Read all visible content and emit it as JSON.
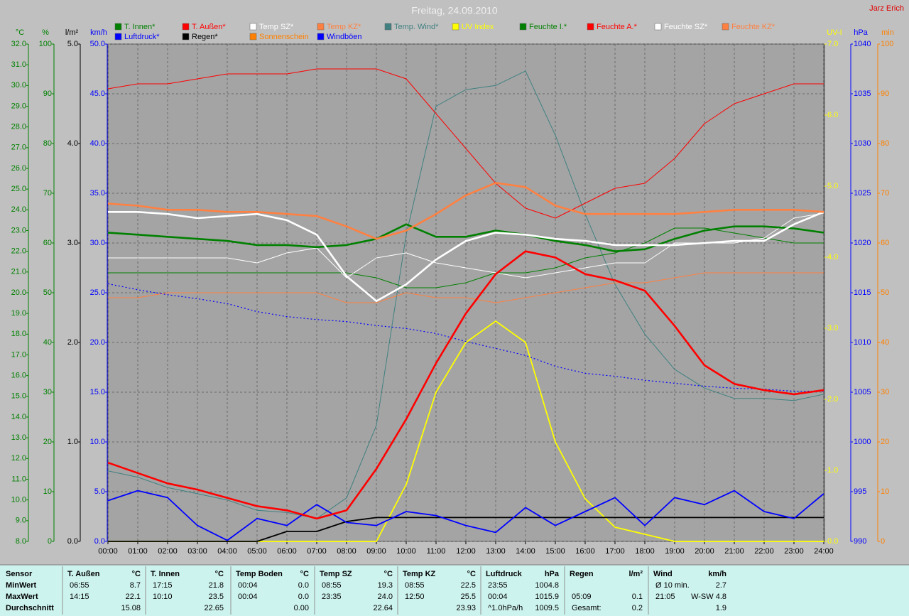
{
  "chart_data": {
    "type": "line",
    "title": "Freitag, 24.09.2010",
    "author": "Jarz Erich",
    "x": [
      0,
      1,
      2,
      3,
      4,
      5,
      6,
      7,
      8,
      9,
      10,
      11,
      12,
      13,
      14,
      15,
      16,
      17,
      18,
      19,
      20,
      21,
      22,
      23,
      24
    ],
    "xlim": [
      0,
      24
    ],
    "xticks": [
      {
        "value": 0,
        "label": "00:00"
      },
      {
        "value": 1,
        "label": "01:00"
      },
      {
        "value": 2,
        "label": "02:00"
      },
      {
        "value": 3,
        "label": "03:00"
      },
      {
        "value": 4,
        "label": "04:00"
      },
      {
        "value": 5,
        "label": "05:00"
      },
      {
        "value": 6,
        "label": "06:00"
      },
      {
        "value": 7,
        "label": "07:00"
      },
      {
        "value": 8,
        "label": "08:00"
      },
      {
        "value": 9,
        "label": "09:00"
      },
      {
        "value": 10,
        "label": "10:00"
      },
      {
        "value": 11,
        "label": "11:00"
      },
      {
        "value": 12,
        "label": "12:00"
      },
      {
        "value": 13,
        "label": "13:00"
      },
      {
        "value": 14,
        "label": "14:00"
      },
      {
        "value": 15,
        "label": "15:00"
      },
      {
        "value": 16,
        "label": "16:00"
      },
      {
        "value": 17,
        "label": "17:00"
      },
      {
        "value": 18,
        "label": "18:00"
      },
      {
        "value": 19,
        "label": "19:00"
      },
      {
        "value": 20,
        "label": "20:00"
      },
      {
        "value": 21,
        "label": "21:00"
      },
      {
        "value": 22,
        "label": "22:00"
      },
      {
        "value": 23,
        "label": "23:00"
      },
      {
        "value": 24,
        "label": "24:00"
      }
    ],
    "grid": true,
    "axes": [
      {
        "label": "°C",
        "color": "#008000",
        "side": "left",
        "ylim": [
          8,
          32
        ],
        "yticks": [
          {
            "value": 8,
            "label": "8.0"
          },
          {
            "value": 9,
            "label": "9.0"
          },
          {
            "value": 10,
            "label": "10.0"
          },
          {
            "value": 11,
            "label": "11.0"
          },
          {
            "value": 12,
            "label": "12.0"
          },
          {
            "value": 13,
            "label": "13.0"
          },
          {
            "value": 14,
            "label": "14.0"
          },
          {
            "value": 15,
            "label": "15.0"
          },
          {
            "value": 16,
            "label": "16.0"
          },
          {
            "value": 17,
            "label": "17.0"
          },
          {
            "value": 18,
            "label": "18.0"
          },
          {
            "value": 19,
            "label": "19.0"
          },
          {
            "value": 20,
            "label": "20.0"
          },
          {
            "value": 21,
            "label": "21.0"
          },
          {
            "value": 22,
            "label": "22.0"
          },
          {
            "value": 23,
            "label": "23.0"
          },
          {
            "value": 24,
            "label": "24.0"
          },
          {
            "value": 25,
            "label": "25.0"
          },
          {
            "value": 26,
            "label": "26.0"
          },
          {
            "value": 27,
            "label": "27.0"
          },
          {
            "value": 28,
            "label": "28.0"
          },
          {
            "value": 29,
            "label": "29.0"
          },
          {
            "value": 30,
            "label": "30.0"
          },
          {
            "value": 31,
            "label": "31.0"
          },
          {
            "value": 32,
            "label": "32.0"
          }
        ]
      },
      {
        "label": "%",
        "color": "#008000",
        "side": "left",
        "ylim": [
          0,
          100
        ],
        "yticks": [
          0,
          10,
          20,
          30,
          40,
          50,
          60,
          70,
          80,
          90,
          100
        ],
        "grid": true
      },
      {
        "label": "l/m²",
        "color": "#000000",
        "side": "left",
        "ylim": [
          0,
          5
        ],
        "yticks": [
          {
            "value": 0,
            "label": "0.0"
          },
          {
            "value": 1,
            "label": "1.0"
          },
          {
            "value": 2,
            "label": "2.0"
          },
          {
            "value": 3,
            "label": "3.0"
          },
          {
            "value": 4,
            "label": "4.0"
          },
          {
            "value": 5,
            "label": "5.0"
          }
        ]
      },
      {
        "label": "km/h",
        "color": "#0000ff",
        "side": "left",
        "ylim": [
          0,
          50
        ],
        "yticks": [
          {
            "value": 0,
            "label": "0.0"
          },
          {
            "value": 5,
            "label": "5.0"
          },
          {
            "value": 10,
            "label": "10.0"
          },
          {
            "value": 15,
            "label": "15.0"
          },
          {
            "value": 20,
            "label": "20.0"
          },
          {
            "value": 25,
            "label": "25.0"
          },
          {
            "value": 30,
            "label": "30.0"
          },
          {
            "value": 35,
            "label": "35.0"
          },
          {
            "value": 40,
            "label": "40.0"
          },
          {
            "value": 45,
            "label": "45.0"
          },
          {
            "value": 50,
            "label": "50.0"
          }
        ]
      },
      {
        "label": "UV-I",
        "color": "#ffff00",
        "side": "right",
        "ylim": [
          0,
          7
        ],
        "yticks": [
          {
            "value": 0,
            "label": "0.0"
          },
          {
            "value": 1,
            "label": "1.0"
          },
          {
            "value": 2,
            "label": "2.0"
          },
          {
            "value": 3,
            "label": "3.0"
          },
          {
            "value": 4,
            "label": "4.0"
          },
          {
            "value": 5,
            "label": "5.0"
          },
          {
            "value": 6,
            "label": "6.0"
          },
          {
            "value": 7,
            "label": "7.0"
          }
        ]
      },
      {
        "label": "hPa",
        "color": "#0000ff",
        "side": "right",
        "ylim": [
          990,
          1040
        ],
        "yticks": [
          990,
          995,
          1000,
          1005,
          1010,
          1015,
          1020,
          1025,
          1030,
          1035,
          1040
        ]
      },
      {
        "label": "min",
        "color": "#ff8000",
        "side": "right",
        "ylim": [
          0,
          100
        ],
        "yticks": [
          0,
          10,
          20,
          30,
          40,
          50,
          60,
          70,
          80,
          90,
          100
        ]
      }
    ],
    "series": [
      {
        "name": "T. Innen*",
        "color": "#008000",
        "axis": 0,
        "line": "thick",
        "values": [
          22.9,
          22.8,
          22.7,
          22.6,
          22.5,
          22.3,
          22.3,
          22.2,
          22.3,
          22.6,
          23.3,
          22.7,
          22.7,
          23.0,
          22.8,
          22.5,
          22.3,
          22.0,
          22.1,
          22.6,
          23.0,
          23.2,
          23.2,
          23.1,
          22.9
        ]
      },
      {
        "name": "T. Außen*",
        "color": "#ff0000",
        "axis": 0,
        "line": "thick",
        "values": [
          11.8,
          11.3,
          10.8,
          10.5,
          10.1,
          9.7,
          9.5,
          9.1,
          9.5,
          11.5,
          13.9,
          16.6,
          19.0,
          20.9,
          22.0,
          21.7,
          20.9,
          20.6,
          20.1,
          18.4,
          16.5,
          15.6,
          15.3,
          15.1,
          15.3
        ]
      },
      {
        "name": "Temp SZ*",
        "color": "#ffffff",
        "axis": 0,
        "line": "thick",
        "values": [
          23.9,
          23.9,
          23.8,
          23.6,
          23.7,
          23.8,
          23.5,
          22.8,
          20.8,
          19.6,
          20.4,
          21.6,
          22.5,
          22.9,
          22.8,
          22.6,
          22.5,
          22.3,
          22.3,
          22.3,
          22.4,
          22.5,
          22.5,
          23.3,
          23.9
        ]
      },
      {
        "name": "Temp KZ*",
        "color": "#ff8040",
        "axis": 0,
        "line": "thick",
        "values": [
          24.3,
          24.2,
          24.0,
          24.0,
          23.9,
          23.9,
          23.8,
          23.7,
          23.2,
          22.6,
          23.0,
          23.8,
          24.7,
          25.3,
          25.1,
          24.2,
          23.8,
          23.8,
          23.8,
          23.8,
          23.9,
          24.0,
          24.0,
          24.0,
          23.9
        ]
      },
      {
        "name": "Temp. Wind*",
        "color": "#408080",
        "axis": 0,
        "line": "thin",
        "values": [
          11.4,
          11.1,
          10.6,
          10.3,
          10.0,
          9.5,
          9.4,
          9.1,
          10.1,
          13.6,
          22.8,
          29.0,
          29.8,
          30.0,
          30.7,
          27.6,
          23.8,
          20.4,
          18.0,
          16.3,
          15.4,
          14.9,
          14.9,
          14.8,
          15.1
        ]
      },
      {
        "name": "UV Index",
        "color": "#ffff00",
        "axis": 4,
        "line": "medium",
        "values": [
          0,
          0,
          0,
          0,
          0,
          0,
          0,
          0,
          0,
          0,
          0.8,
          2.1,
          2.8,
          3.1,
          2.8,
          1.4,
          0.6,
          0.2,
          0.1,
          0,
          0,
          0,
          0,
          0,
          0
        ]
      },
      {
        "name": "Feuchte I.*",
        "color": "#008000",
        "axis": 1,
        "line": "thin",
        "values": [
          54,
          54,
          54,
          54,
          54,
          54,
          54,
          54,
          54,
          53,
          51,
          51,
          52,
          54,
          54,
          55,
          57,
          58,
          60,
          63,
          63,
          62,
          61,
          60,
          60
        ]
      },
      {
        "name": "Feuchte A.*",
        "color": "#ff0000",
        "axis": 1,
        "line": "thin",
        "values": [
          91,
          92,
          92,
          93,
          94,
          94,
          94,
          95,
          95,
          95,
          93,
          86,
          79,
          72,
          67,
          65,
          68,
          71,
          72,
          77,
          84,
          88,
          90,
          92,
          92
        ]
      },
      {
        "name": "Feuchte SZ*",
        "color": "#ffffff",
        "axis": 1,
        "line": "thin",
        "values": [
          57,
          57,
          57,
          57,
          57,
          56,
          58,
          59,
          53,
          57,
          58,
          56,
          55,
          54,
          53,
          54,
          55,
          56,
          56,
          60,
          60,
          60,
          61,
          65,
          66
        ]
      },
      {
        "name": "Feuchte KZ*",
        "color": "#ff8040",
        "axis": 1,
        "line": "thin",
        "values": [
          49,
          49,
          50,
          50,
          50,
          50,
          50,
          50,
          48,
          48,
          50,
          49,
          49,
          48,
          49,
          50,
          51,
          52,
          52,
          53,
          54,
          54,
          54,
          54,
          54
        ]
      },
      {
        "name": "Luftdruck*",
        "color": "#0000ff",
        "axis": 5,
        "line": "dotted",
        "values": [
          1015.9,
          1015.3,
          1014.8,
          1014.4,
          1013.9,
          1013.1,
          1012.6,
          1012.3,
          1012.1,
          1011.7,
          1011.4,
          1010.9,
          1010.1,
          1009.4,
          1008.7,
          1007.6,
          1006.9,
          1006.6,
          1006.2,
          1005.9,
          1005.6,
          1005.4,
          1005.3,
          1005.1,
          1005.1
        ]
      },
      {
        "name": "Regen*",
        "color": "#000000",
        "axis": 2,
        "line": "medium",
        "values": [
          0,
          0,
          0,
          0,
          0,
          0,
          0.1,
          0.1,
          0.2,
          0.24,
          0.24,
          0.24,
          0.24,
          0.24,
          0.24,
          0.24,
          0.24,
          0.24,
          0.24,
          0.24,
          0.24,
          0.24,
          0.24,
          0.24,
          0.24
        ]
      },
      {
        "name": "Sonnenschein",
        "color": "#ff8000",
        "axis": 6,
        "line": "thin",
        "values": [
          null,
          null,
          null,
          null,
          null,
          null,
          null,
          null,
          null,
          null,
          null,
          null,
          null,
          null,
          null,
          null,
          null,
          null,
          null,
          null,
          null,
          null,
          null,
          null,
          null
        ]
      },
      {
        "name": "Windböen",
        "color": "#0000ff",
        "axis": 3,
        "line": "medium",
        "values": [
          4.1,
          5.1,
          4.4,
          1.6,
          0.1,
          2.3,
          1.6,
          3.7,
          1.9,
          1.6,
          3.0,
          2.6,
          1.6,
          0.9,
          3.4,
          1.6,
          3.0,
          4.4,
          1.6,
          4.4,
          3.7,
          5.1,
          3.0,
          2.3,
          4.8
        ]
      }
    ]
  },
  "table": {
    "row_labels": [
      "Sensor",
      "MinWert",
      "MaxWert",
      "Durchschnitt"
    ],
    "columns": [
      {
        "name": "T. Außen",
        "unit": "°C",
        "min": [
          "06:55",
          "8.7"
        ],
        "max": [
          "14:15",
          "22.1"
        ],
        "avg": [
          "15.08"
        ]
      },
      {
        "name": "T. Innen",
        "unit": "°C",
        "min": [
          "17:15",
          "21.8"
        ],
        "max": [
          "10:10",
          "23.5"
        ],
        "avg": [
          "22.65"
        ]
      },
      {
        "name": "Temp Boden",
        "unit": "°C",
        "min": [
          "00:04",
          "0.0"
        ],
        "max": [
          "00:04",
          "0.0"
        ],
        "avg": [
          "0.00"
        ]
      },
      {
        "name": "Temp SZ",
        "unit": "°C",
        "min": [
          "08:55",
          "19.3"
        ],
        "max": [
          "23:35",
          "24.0"
        ],
        "avg": [
          "22.64"
        ]
      },
      {
        "name": "Temp KZ",
        "unit": "°C",
        "min": [
          "08:55",
          "22.5"
        ],
        "max": [
          "12:50",
          "25.5"
        ],
        "avg": [
          "23.93"
        ]
      },
      {
        "name": "Luftdruck",
        "unit": "hPa",
        "min": [
          "23:55",
          "1004.8"
        ],
        "max": [
          "00:04",
          "1015.9"
        ],
        "avg": [
          "^1.0hPa/h",
          "1009.5"
        ]
      },
      {
        "name": "Regen",
        "unit": "l/m²",
        "min": [],
        "max": [
          "05:09",
          "0.1"
        ],
        "avg": [
          "Gesamt:",
          "0.2"
        ]
      },
      {
        "name": "Wind",
        "unit": "km/h",
        "min": [
          "Ø 10 min.",
          "2.7"
        ],
        "max": [
          "21:05",
          "W-SW 4.8"
        ],
        "avg": [
          "1.9"
        ]
      }
    ]
  }
}
